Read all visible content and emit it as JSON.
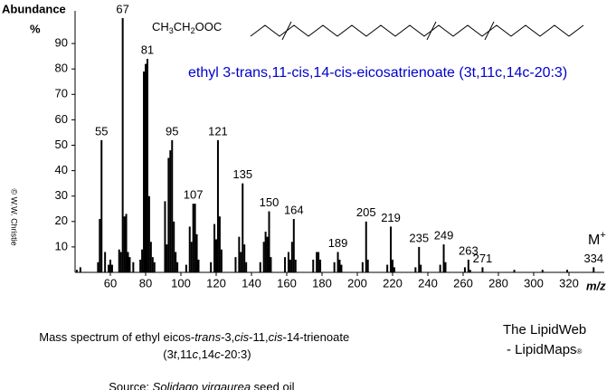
{
  "chart_data": {
    "type": "spectrum",
    "y_label": "Abundance",
    "y_unit": "%",
    "x_label": "m/z",
    "structure_formula": [
      "CH",
      "3",
      "CH",
      "2",
      "OOC"
    ],
    "compound_title": "ethyl 3-trans,11-cis,14-cis-eicosatrienoate   (3t,11c,14c-20:3)",
    "copyright": "© W.W. Christie",
    "color": "#000000",
    "title_color": "#0000cc",
    "xlim": [
      40,
      340
    ],
    "ylim": [
      0,
      100
    ],
    "xticks": [
      60,
      80,
      100,
      120,
      140,
      160,
      180,
      200,
      220,
      240,
      260,
      280,
      300,
      320
    ],
    "yticks": [
      10,
      20,
      30,
      40,
      50,
      60,
      70,
      80,
      90
    ],
    "x": [
      41,
      43,
      53,
      54,
      55,
      57,
      59,
      60,
      61,
      65,
      66,
      67,
      68,
      69,
      70,
      71,
      73,
      77,
      78,
      79,
      80,
      81,
      82,
      83,
      84,
      85,
      91,
      92,
      93,
      94,
      95,
      96,
      97,
      98,
      103,
      105,
      106,
      107,
      108,
      109,
      110,
      117,
      119,
      120,
      121,
      122,
      123,
      131,
      133,
      134,
      135,
      136,
      137,
      145,
      147,
      148,
      149,
      150,
      151,
      159,
      161,
      162,
      163,
      164,
      165,
      175,
      177,
      178,
      179,
      187,
      189,
      190,
      191,
      203,
      205,
      206,
      217,
      219,
      220,
      221,
      233,
      235,
      236,
      247,
      249,
      250,
      261,
      263,
      264,
      271,
      289,
      305,
      319,
      334
    ],
    "values": [
      1,
      2,
      4,
      21,
      52,
      8,
      3,
      5,
      3,
      9,
      8,
      100,
      22,
      23,
      8,
      6,
      4,
      5,
      9,
      79,
      82,
      84,
      30,
      12,
      6,
      4,
      28,
      11,
      45,
      48,
      52,
      20,
      8,
      4,
      3,
      18,
      12,
      27,
      27,
      15,
      5,
      4,
      19,
      13,
      52,
      22,
      9,
      6,
      14,
      8,
      35,
      11,
      4,
      4,
      12,
      16,
      14,
      24,
      6,
      6,
      8,
      5,
      12,
      21,
      5,
      5,
      8,
      8,
      5,
      4,
      8,
      5,
      3,
      4,
      20,
      5,
      3,
      18,
      5,
      2,
      2,
      10,
      3,
      3,
      11,
      4,
      2,
      5,
      1,
      2,
      1,
      1,
      1,
      2
    ],
    "peak_labels": [
      55,
      67,
      81,
      95,
      107,
      121,
      135,
      150,
      164,
      189,
      205,
      219,
      235,
      249,
      263,
      271,
      334
    ],
    "molecular_ion": {
      "label": "M",
      "charge": "+"
    }
  },
  "caption": {
    "line1": [
      "Mass spectrum of ethyl eicos-",
      "trans",
      "-3,",
      "cis",
      "-11,",
      "cis",
      "-14-trienoate"
    ],
    "line2": [
      "(3",
      "t",
      ",11",
      "c",
      ",14",
      "c",
      "-20:3)"
    ],
    "source": [
      "Source: ",
      "Solidago virgaurea",
      " seed oil"
    ]
  },
  "credit": {
    "line1": "The LipidWeb",
    "line2": "- LipidMaps",
    "mark": "®"
  }
}
